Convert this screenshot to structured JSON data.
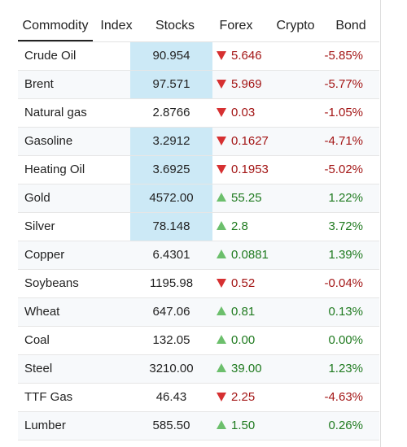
{
  "tabs": [
    "Commodity",
    "Index",
    "Stocks",
    "Forex",
    "Crypto",
    "Bond"
  ],
  "active_tab": 0,
  "rows": [
    {
      "name": "Crude Oil",
      "price": "90.954",
      "direction": "down",
      "change": "5.646",
      "percent": "-5.85%",
      "highlight": true
    },
    {
      "name": "Brent",
      "price": "97.571",
      "direction": "down",
      "change": "5.969",
      "percent": "-5.77%",
      "highlight": true
    },
    {
      "name": "Natural gas",
      "price": "2.8766",
      "direction": "down",
      "change": "0.03",
      "percent": "-1.05%",
      "highlight": false
    },
    {
      "name": "Gasoline",
      "price": "3.2912",
      "direction": "down",
      "change": "0.1627",
      "percent": "-4.71%",
      "highlight": true
    },
    {
      "name": "Heating Oil",
      "price": "3.6925",
      "direction": "down",
      "change": "0.1953",
      "percent": "-5.02%",
      "highlight": true
    },
    {
      "name": "Gold",
      "price": "4572.00",
      "direction": "up",
      "change": "55.25",
      "percent": "1.22%",
      "highlight": true
    },
    {
      "name": "Silver",
      "price": "78.148",
      "direction": "up",
      "change": "2.8",
      "percent": "3.72%",
      "highlight": true
    },
    {
      "name": "Copper",
      "price": "6.4301",
      "direction": "up",
      "change": "0.0881",
      "percent": "1.39%",
      "highlight": false
    },
    {
      "name": "Soybeans",
      "price": "1195.98",
      "direction": "down",
      "change": "0.52",
      "percent": "-0.04%",
      "highlight": false
    },
    {
      "name": "Wheat",
      "price": "647.06",
      "direction": "up",
      "change": "0.81",
      "percent": "0.13%",
      "highlight": false
    },
    {
      "name": "Coal",
      "price": "132.05",
      "direction": "up",
      "change": "0.00",
      "percent": "0.00%",
      "highlight": false
    },
    {
      "name": "Steel",
      "price": "3210.00",
      "direction": "up",
      "change": "39.00",
      "percent": "1.23%",
      "highlight": false
    },
    {
      "name": "TTF Gas",
      "price": "46.43",
      "direction": "down",
      "change": "2.25",
      "percent": "-4.63%",
      "highlight": false
    },
    {
      "name": "Lumber",
      "price": "585.50",
      "direction": "up",
      "change": "1.50",
      "percent": "0.26%",
      "highlight": false
    }
  ]
}
